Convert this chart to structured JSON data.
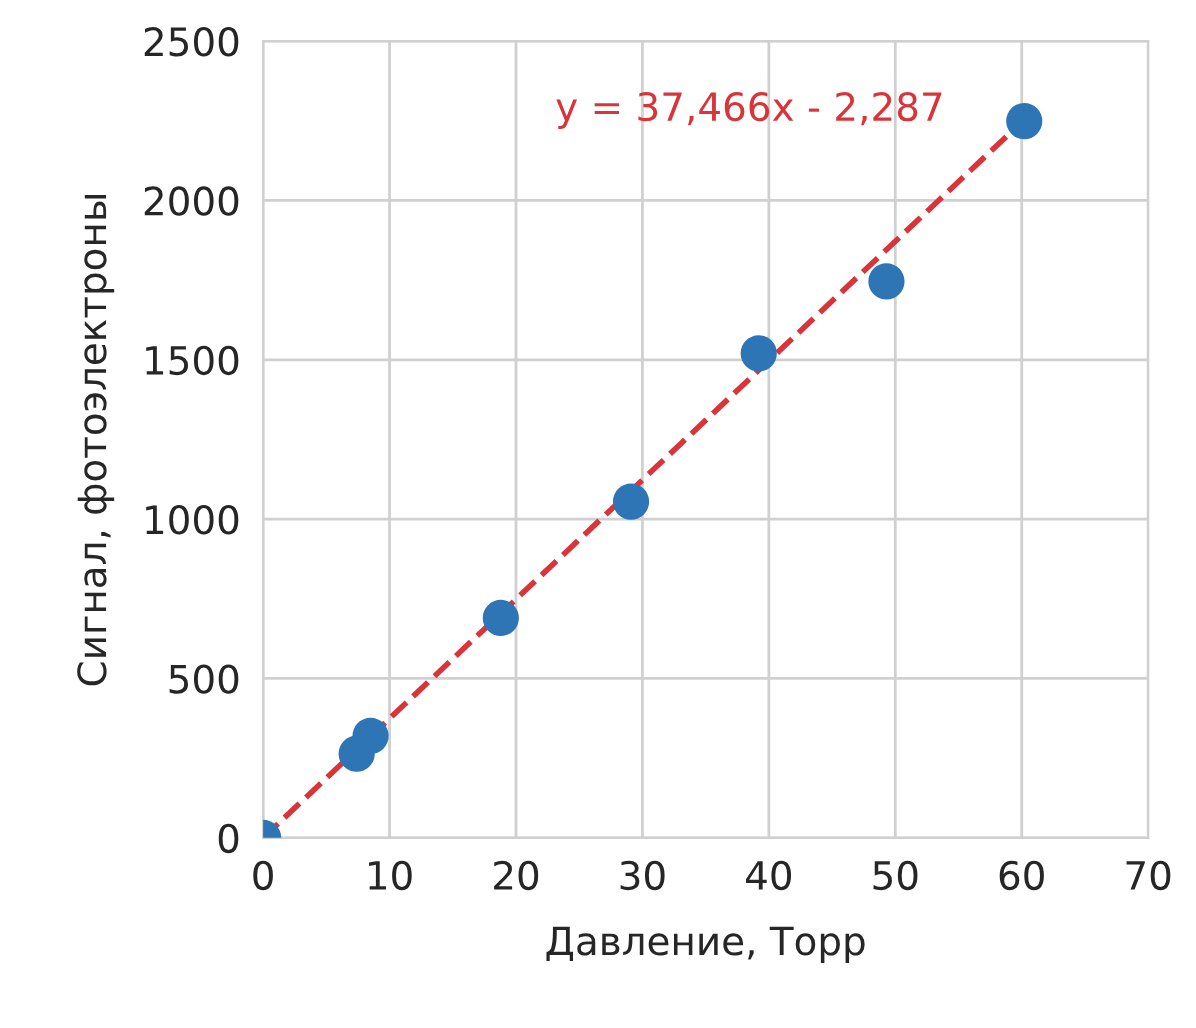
{
  "chart_data": {
    "type": "scatter",
    "xlabel": "Давление, Торр",
    "ylabel": "Сигнал, фотоэлектроны",
    "xlim": [
      0,
      70
    ],
    "xticks": [
      0,
      10,
      20,
      30,
      40,
      50,
      60,
      70
    ],
    "ylim": [
      0,
      2500
    ],
    "yticks": [
      0,
      500,
      1000,
      1500,
      2000,
      2500
    ],
    "grid": true,
    "series": [
      {
        "color": "#2e75b6",
        "marker": "circle",
        "x": [
          0,
          7.4,
          8.5,
          18.8,
          29.1,
          39.2,
          49.3,
          60.2
        ],
        "values": [
          0,
          264,
          320,
          690,
          1055,
          1520,
          1746,
          2249
        ]
      },
      {
        "type": "line",
        "color": "#d9343a",
        "line_style": "dashed",
        "x": [
          0,
          60
        ],
        "values": [
          0,
          2246
        ]
      }
    ],
    "annotations": [
      "y = 37,466x - 2,287"
    ]
  }
}
